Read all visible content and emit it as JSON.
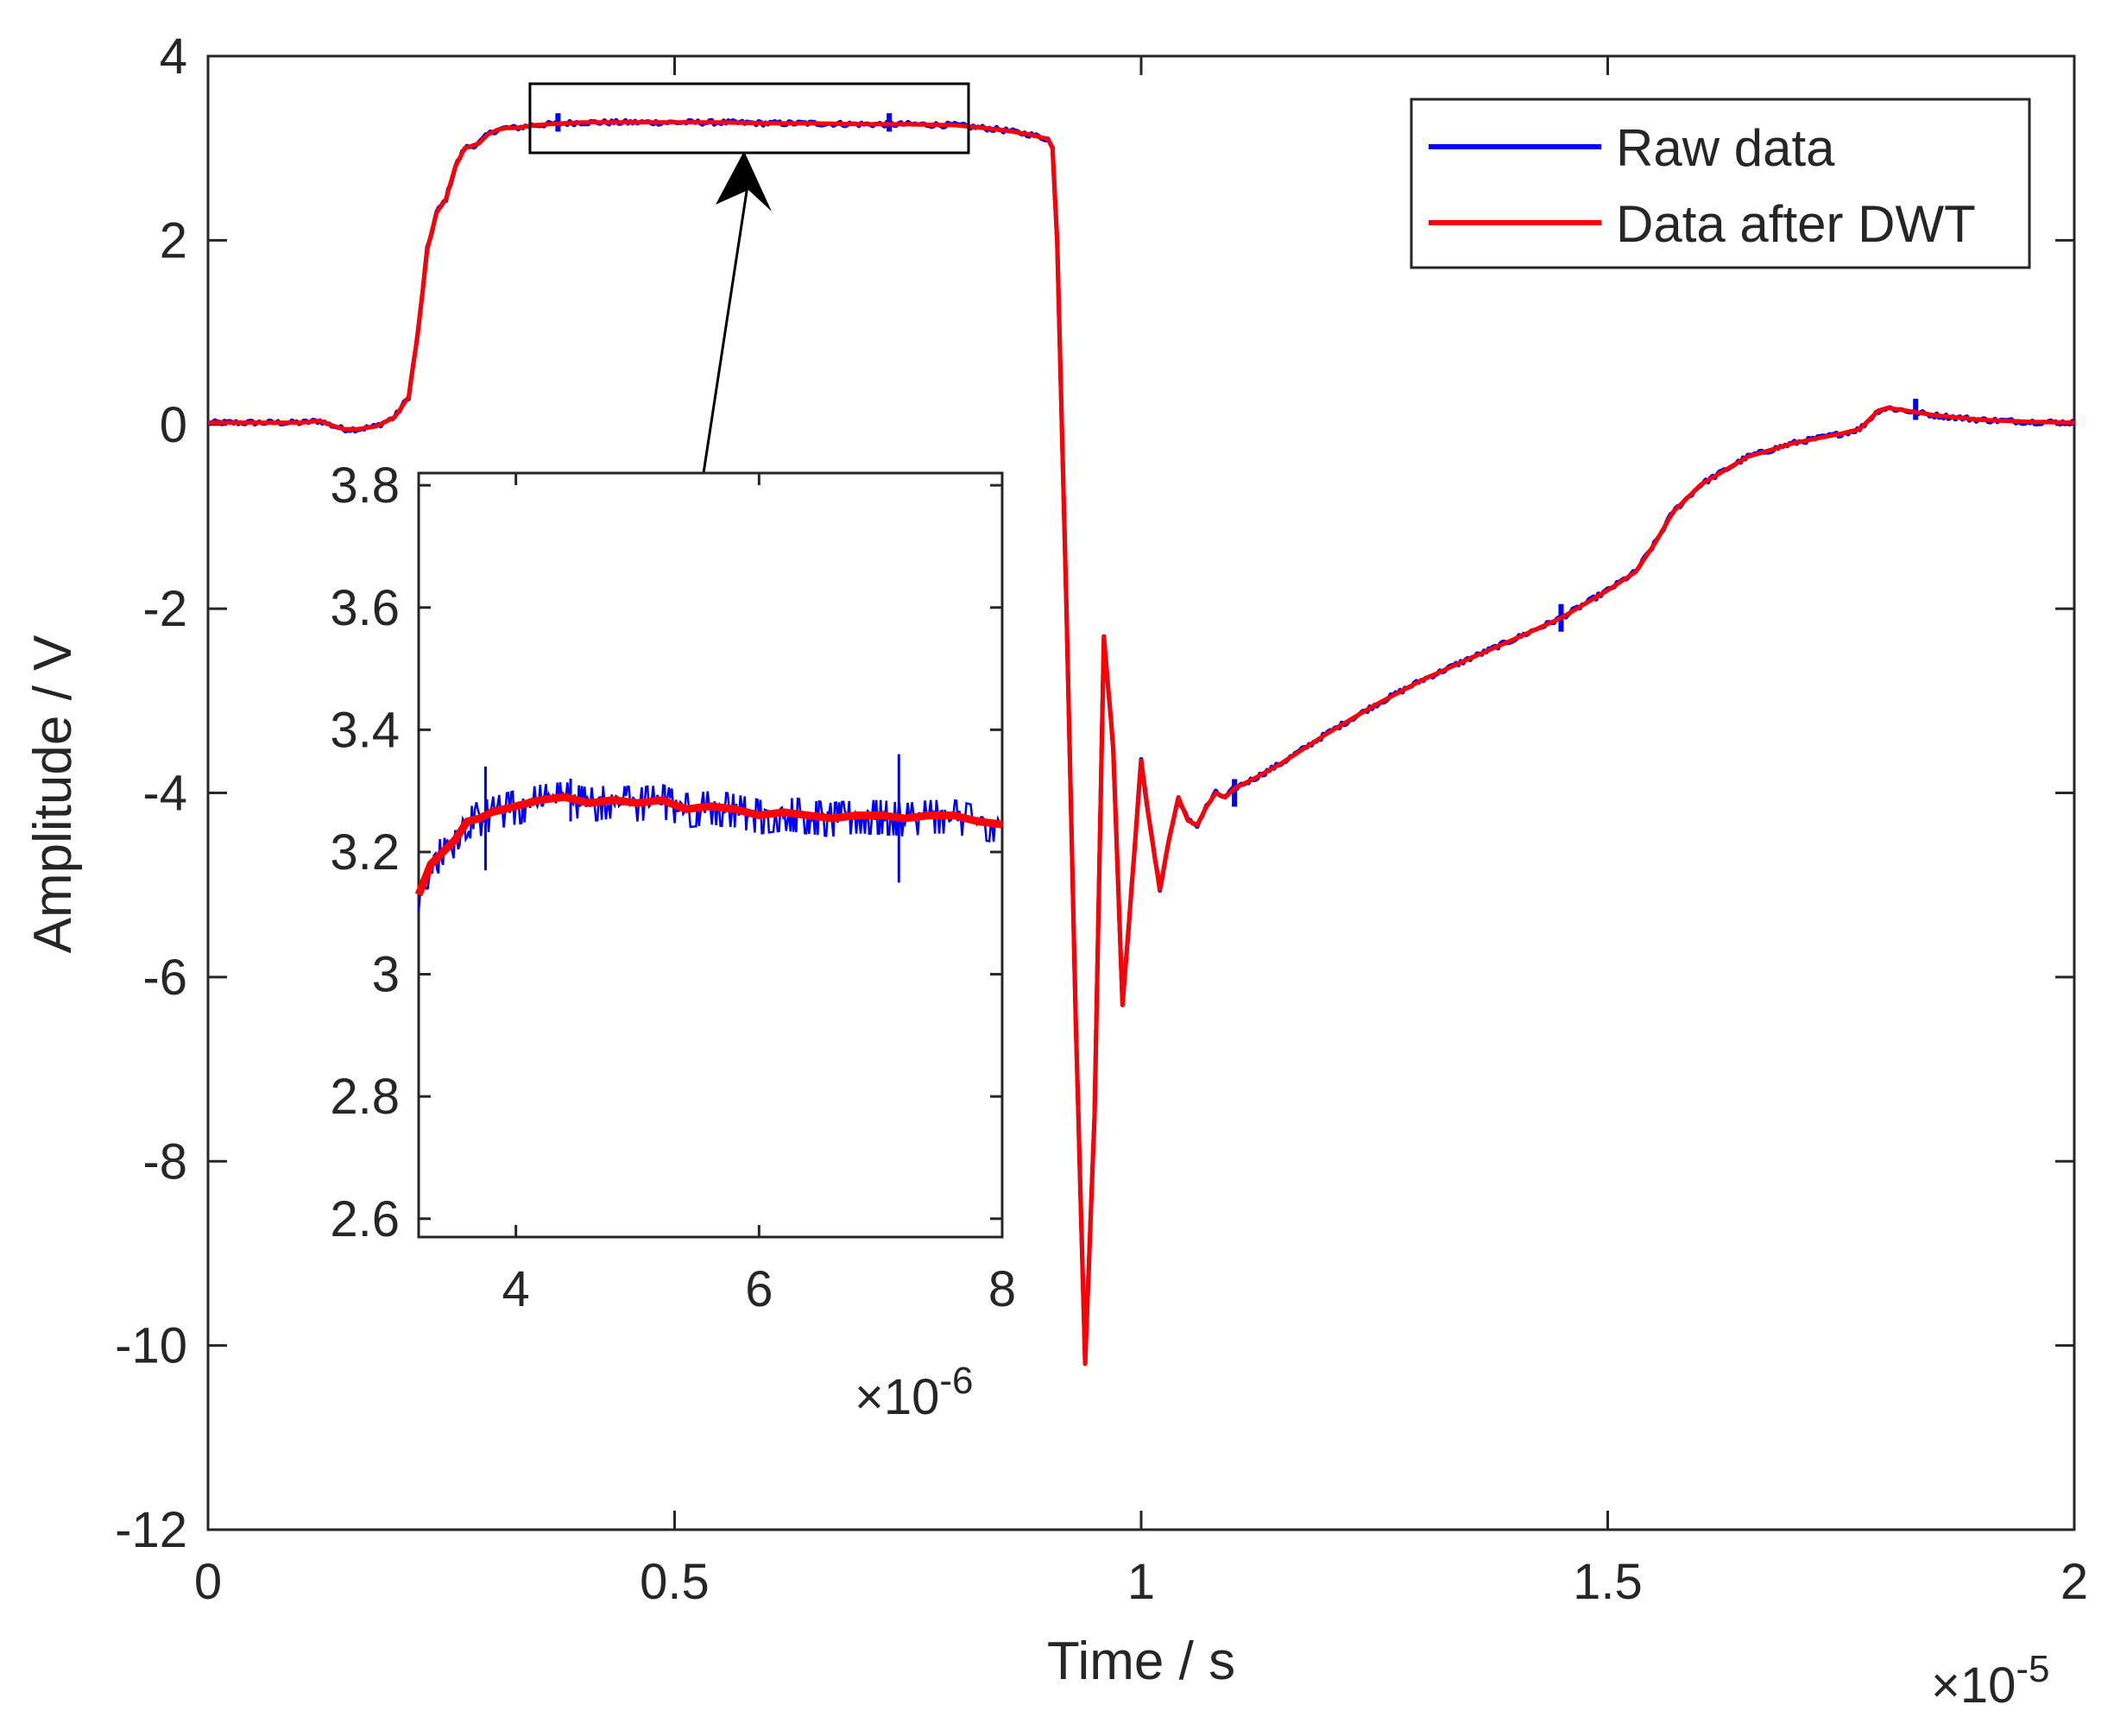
{
  "chart_data": {
    "type": "line",
    "title": "",
    "xlabel": "Time / s",
    "ylabel": "Amplitude / V",
    "x_exponent": "×10",
    "x_exponent_power": "-5",
    "xlim": [
      0,
      2
    ],
    "ylim": [
      -12,
      4
    ],
    "xticks": [
      0,
      0.5,
      1,
      1.5,
      2
    ],
    "xtick_labels": [
      "0",
      "0.5",
      "1",
      "1.5",
      "2"
    ],
    "yticks": [
      -12,
      -10,
      -8,
      -6,
      -4,
      -2,
      0,
      2,
      4
    ],
    "ytick_labels": [
      "-12",
      "-10",
      "-8",
      "-6",
      "-4",
      "-2",
      "0",
      "2",
      "4"
    ],
    "legend": {
      "position": "top-right",
      "entries": [
        "Raw data",
        "Data after DWT"
      ]
    },
    "colors": {
      "raw": "#0000ff",
      "dwt": "#ff0000",
      "axis": "#262626"
    },
    "series": [
      {
        "name": "Data after DWT",
        "x": [
          0,
          0.05,
          0.1,
          0.12,
          0.13,
          0.145,
          0.16,
          0.18,
          0.2,
          0.215,
          0.225,
          0.235,
          0.245,
          0.255,
          0.265,
          0.275,
          0.29,
          0.3,
          0.31,
          0.32,
          0.33,
          0.35,
          0.38,
          0.4,
          0.45,
          0.5,
          0.55,
          0.6,
          0.65,
          0.7,
          0.75,
          0.8,
          0.85,
          0.88,
          0.9,
          0.905,
          0.91,
          0.92,
          0.93,
          0.94,
          0.95,
          0.96,
          0.97,
          0.98,
          0.99,
          1.0,
          1.01,
          1.02,
          1.03,
          1.04,
          1.05,
          1.06,
          1.07,
          1.08,
          1.09,
          1.1,
          1.12,
          1.15,
          1.2,
          1.25,
          1.3,
          1.35,
          1.4,
          1.45,
          1.5,
          1.53,
          1.55,
          1.57,
          1.6,
          1.65,
          1.7,
          1.75,
          1.77,
          1.78,
          1.79,
          1.8,
          1.82,
          1.85,
          1.9,
          1.95,
          2.0
        ],
        "y": [
          0.02,
          0.02,
          0.02,
          0.04,
          0.0,
          -0.05,
          -0.05,
          -0.02,
          0.08,
          0.3,
          1.0,
          1.9,
          2.3,
          2.45,
          2.8,
          3.0,
          3.05,
          3.15,
          3.2,
          3.22,
          3.22,
          3.25,
          3.27,
          3.28,
          3.28,
          3.28,
          3.28,
          3.27,
          3.27,
          3.26,
          3.26,
          3.25,
          3.2,
          3.15,
          3.1,
          3.0,
          2.0,
          -2.0,
          -6.5,
          -10.2,
          -7.5,
          -2.3,
          -3.5,
          -6.3,
          -5.0,
          -3.65,
          -4.4,
          -5.05,
          -4.5,
          -4.05,
          -4.3,
          -4.35,
          -4.15,
          -4.0,
          -4.05,
          -3.95,
          -3.85,
          -3.68,
          -3.35,
          -3.05,
          -2.78,
          -2.55,
          -2.33,
          -2.1,
          -1.8,
          -1.6,
          -1.3,
          -0.95,
          -0.65,
          -0.35,
          -0.2,
          -0.1,
          -0.05,
          0.05,
          0.15,
          0.18,
          0.15,
          0.1,
          0.05,
          0.03,
          0.02
        ]
      },
      {
        "name": "Raw data",
        "note_noise": "raw data follows the DWT curve with small high-frequency noise"
      }
    ],
    "inset": {
      "xlim": [
        3.2,
        8
      ],
      "ylim": [
        2.57,
        3.82
      ],
      "xticks": [
        4,
        6,
        8
      ],
      "xtick_labels": [
        "4",
        "6",
        "8"
      ],
      "yticks": [
        2.6,
        2.8,
        3,
        3.2,
        3.4,
        3.6,
        3.8
      ],
      "ytick_labels": [
        "2.6",
        "2.8",
        "3",
        "3.2",
        "3.4",
        "3.6",
        "3.8"
      ],
      "x_exponent": "×10",
      "x_exponent_power": "-6",
      "dwt_x": [
        3.2,
        3.3,
        3.4,
        3.5,
        3.6,
        3.7,
        3.8,
        3.9,
        4.0,
        4.2,
        4.4,
        4.6,
        4.8,
        5.0,
        5.2,
        5.4,
        5.6,
        5.8,
        6.0,
        6.2,
        6.4,
        6.6,
        6.8,
        7.0,
        7.2,
        7.4,
        7.6,
        7.8,
        8.0
      ],
      "dwt_y": [
        3.13,
        3.18,
        3.2,
        3.22,
        3.25,
        3.255,
        3.265,
        3.27,
        3.275,
        3.285,
        3.29,
        3.28,
        3.285,
        3.28,
        3.285,
        3.27,
        3.275,
        3.27,
        3.26,
        3.265,
        3.26,
        3.255,
        3.26,
        3.26,
        3.255,
        3.26,
        3.26,
        3.25,
        3.245
      ],
      "spikes": [
        {
          "x": 3.75,
          "low": 3.17,
          "high": 3.34
        },
        {
          "x": 4.45,
          "low": 3.25,
          "high": 3.32
        },
        {
          "x": 7.15,
          "low": 3.15,
          "high": 3.36
        }
      ],
      "zoom_box": {
        "x_range": [
          0.345,
          0.815
        ],
        "y_range": [
          2.95,
          3.7
        ]
      }
    }
  }
}
